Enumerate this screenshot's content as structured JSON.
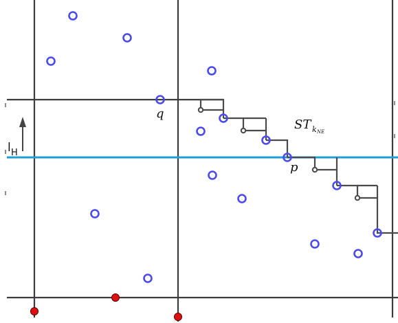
{
  "labels": {
    "q": "q",
    "p": "p",
    "st_main": "ST",
    "st_sub": "k",
    "st_subsub": "NE",
    "lh_main": "l",
    "lh_sub": "H"
  },
  "colors": {
    "line": "#3c3c3c",
    "staircase": "#4a4a4a",
    "sweep": "#1f9fd8",
    "point": "#4a4af0",
    "red_point": "#dd1111"
  }
}
